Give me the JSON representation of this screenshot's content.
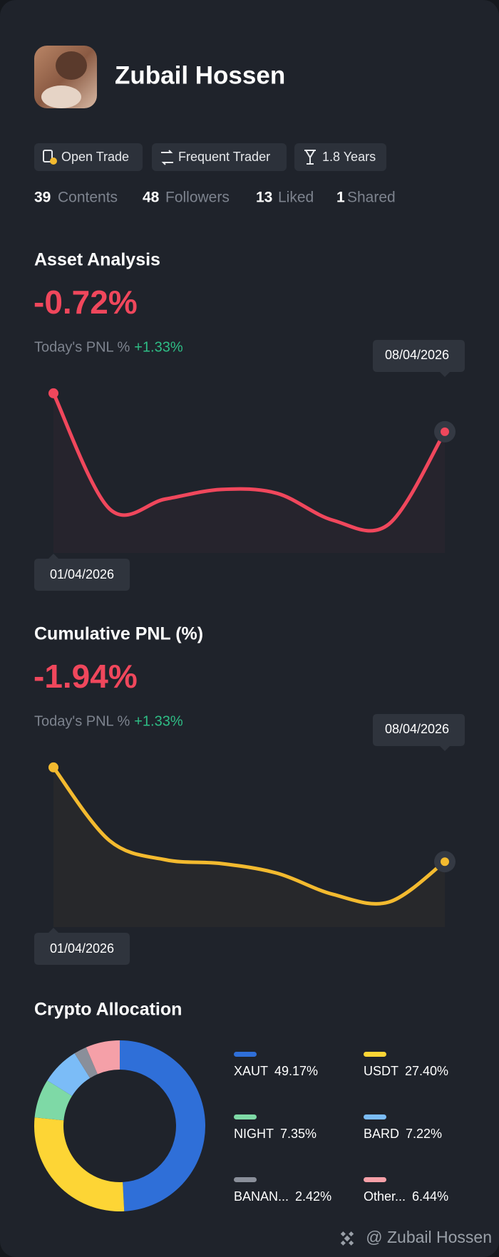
{
  "profile": {
    "name": "Zubail Hossen",
    "badges": [
      "Open Trade",
      "Frequent Trader",
      "1.8 Years"
    ],
    "stats": [
      {
        "count": "39",
        "label": "Contents"
      },
      {
        "count": "48",
        "label": "Followers"
      },
      {
        "count": "13",
        "label": "Liked"
      },
      {
        "count": "1",
        "label": "Shared"
      }
    ]
  },
  "chart_data": [
    {
      "type": "line",
      "title": "Asset Analysis",
      "headline": "-0.72%",
      "pnl_label": "Today's PNL %",
      "pnl_value": "+1.33%",
      "categories": [
        "01/04/2026",
        null,
        null,
        null,
        null,
        null,
        null,
        "08/04/2026"
      ],
      "series": [
        {
          "color": "#f0475c",
          "values": [
            83,
            23,
            28,
            33,
            31,
            17,
            15,
            63
          ]
        }
      ],
      "ylim": [
        0,
        100
      ]
    },
    {
      "type": "line",
      "title": "Cumulative PNL (%)",
      "headline": "-1.94%",
      "pnl_label": "Today's PNL %",
      "pnl_value": "+1.33%",
      "categories": [
        "01/04/2026",
        null,
        null,
        null,
        null,
        null,
        null,
        "08/04/2026"
      ],
      "series": [
        {
          "color": "#f3ba2f",
          "values": [
            83,
            45,
            35,
            33,
            28,
            17,
            13,
            34
          ]
        }
      ],
      "ylim": [
        0,
        100
      ]
    },
    {
      "type": "donut",
      "title": "Crypto Allocation",
      "categories": [
        "XAUT",
        "USDT",
        "NIGHT",
        "BARD",
        "BANAN...",
        "Other..."
      ],
      "values": [
        49.17,
        27.4,
        7.35,
        7.22,
        2.42,
        6.44
      ],
      "value_labels": [
        "49.17%",
        "27.40%",
        "7.35%",
        "7.22%",
        "2.42%",
        "6.44%"
      ],
      "colors": [
        "#2f6fd8",
        "#fdd535",
        "#7ed9a6",
        "#7bbcf7",
        "#8a8f9a",
        "#f5a0a8"
      ]
    }
  ],
  "watermark": "@ Zubail Hossen"
}
